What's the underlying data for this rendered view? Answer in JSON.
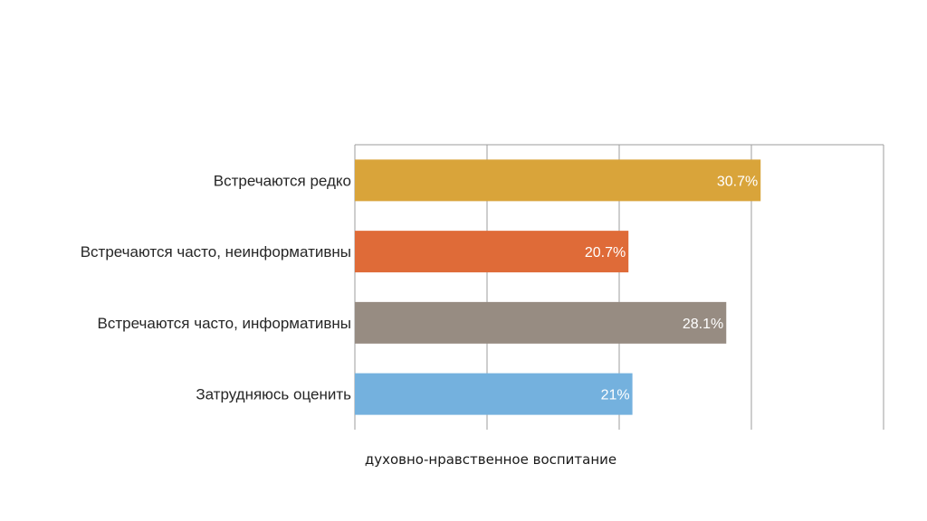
{
  "chart_data": {
    "type": "bar",
    "orientation": "horizontal",
    "title": "",
    "xlabel": "духовно-нравственное воспитание",
    "ylabel": "",
    "xlim": [
      0,
      40
    ],
    "grid": true,
    "categories": [
      "Встречаются редко",
      "Встречаются часто, неинформативны",
      "Встречаются часто, информативны",
      "Затрудняюсь оценить"
    ],
    "values": [
      30.7,
      20.7,
      28.1,
      21
    ],
    "value_labels": [
      "30.7%",
      "20.7%",
      "28.1%",
      "21%"
    ],
    "colors": [
      "#D9A43A",
      "#DF6B38",
      "#978C82",
      "#74B1DE"
    ]
  }
}
